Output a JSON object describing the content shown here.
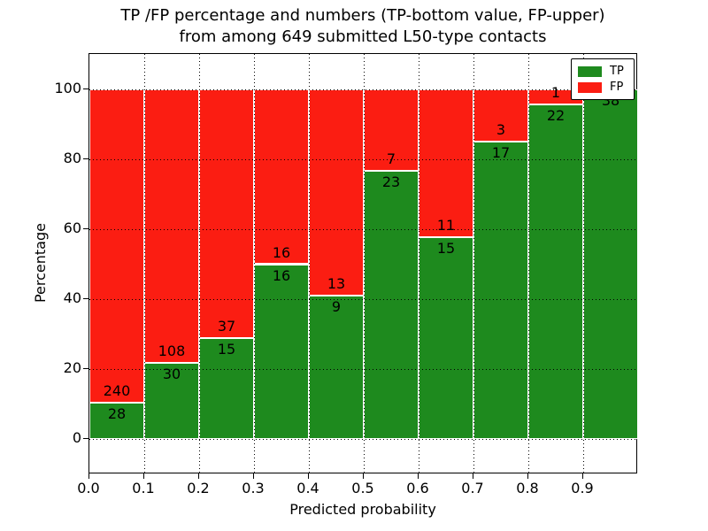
{
  "figure": {
    "title_line1": "TP /FP percentage and numbers (TP-bottom value, FP-upper)",
    "title_line2": "from among 649 submitted L50-type contacts",
    "x_axis_label": "Predicted probability",
    "y_axis_label": "Percentage"
  },
  "legend": {
    "items": [
      {
        "label": "TP",
        "color": "#1e8a1e"
      },
      {
        "label": "FP",
        "color": "#fb1d12"
      }
    ]
  },
  "colors": {
    "tp_green": "#1e8a1e",
    "fp_red": "#fb1d12",
    "text": "#000000",
    "background": "#ffffff",
    "bar_edge": "#ffffff",
    "grid": "#000000"
  },
  "chart_data": {
    "type": "bar",
    "stacked": true,
    "normalized_to_percent": true,
    "title": "TP /FP percentage and numbers (TP-bottom value, FP-upper) from among 649 submitted L50-type contacts",
    "xlabel": "Predicted probability",
    "ylabel": "Percentage",
    "total_contacts": 649,
    "bin_width": 0.1,
    "categories": [
      "0.0-0.1",
      "0.1-0.2",
      "0.2-0.3",
      "0.3-0.4",
      "0.4-0.5",
      "0.5-0.6",
      "0.6-0.7",
      "0.7-0.8",
      "0.8-0.9",
      "0.9-1.0"
    ],
    "x_bin_starts": [
      0.0,
      0.1,
      0.2,
      0.3,
      0.4,
      0.5,
      0.6,
      0.7,
      0.8,
      0.9
    ],
    "series": [
      {
        "name": "TP",
        "position": "bottom",
        "color": "#1e8a1e",
        "counts": [
          28,
          30,
          15,
          16,
          9,
          23,
          15,
          17,
          22,
          38
        ]
      },
      {
        "name": "FP",
        "position": "upper",
        "color": "#fb1d12",
        "counts": [
          240,
          108,
          37,
          16,
          13,
          7,
          11,
          3,
          1,
          0
        ]
      }
    ],
    "tp_percentages": [
      10.4,
      21.7,
      28.8,
      50.0,
      40.9,
      76.7,
      57.7,
      85.0,
      95.7,
      100.0
    ],
    "bar_value_labels": "counts shown at TP/FP boundary (TP below, FP above)",
    "xlim": [
      0.0,
      1.0
    ],
    "ylim": [
      -10,
      110
    ],
    "x_ticks": [
      0.0,
      0.1,
      0.2,
      0.3,
      0.4,
      0.5,
      0.6,
      0.7,
      0.8,
      0.9
    ],
    "x_tick_labels": [
      "0.0",
      "0.1",
      "0.2",
      "0.3",
      "0.4",
      "0.5",
      "0.6",
      "0.7",
      "0.8",
      "0.9"
    ],
    "y_ticks": [
      0,
      20,
      40,
      60,
      80,
      100
    ],
    "y_tick_labels": [
      "0",
      "20",
      "40",
      "60",
      "80",
      "100"
    ],
    "grid": true,
    "grid_style": "dotted",
    "legend_position": "upper right"
  }
}
